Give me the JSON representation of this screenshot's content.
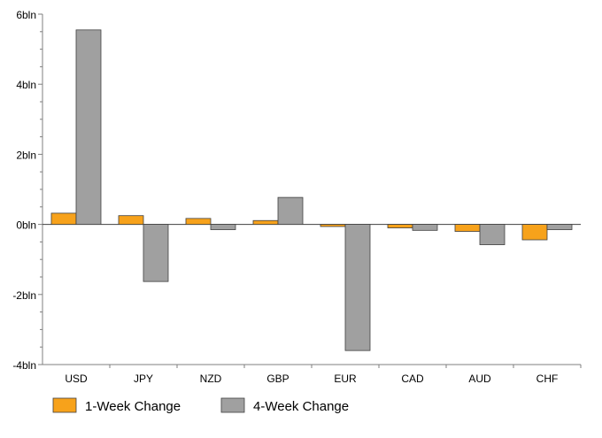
{
  "chart_data": {
    "type": "bar",
    "title": "",
    "xlabel": "",
    "ylabel": "",
    "categories": [
      "USD",
      "JPY",
      "NZD",
      "GBP",
      "EUR",
      "CAD",
      "AUD",
      "CHF"
    ],
    "series": [
      {
        "name": "1-Week Change",
        "color": "#f7a21b",
        "values": [
          0.32,
          0.25,
          0.17,
          0.11,
          -0.06,
          -0.1,
          -0.2,
          -0.44
        ]
      },
      {
        "name": "4-Week Change",
        "color": "#a0a0a0",
        "values": [
          5.55,
          -1.63,
          -0.15,
          0.77,
          -3.6,
          -0.17,
          -0.58,
          -0.15
        ]
      }
    ],
    "ylim": [
      -4,
      6
    ],
    "yticks": [
      {
        "value": 6,
        "label": "6bln"
      },
      {
        "value": 4,
        "label": "4bln"
      },
      {
        "value": 2,
        "label": "2bln"
      },
      {
        "value": 0,
        "label": "0bln"
      },
      {
        "value": -2,
        "label": "-2bln"
      },
      {
        "value": -4,
        "label": "-4bln"
      }
    ],
    "grid": false,
    "legend_position": "bottom-left"
  }
}
